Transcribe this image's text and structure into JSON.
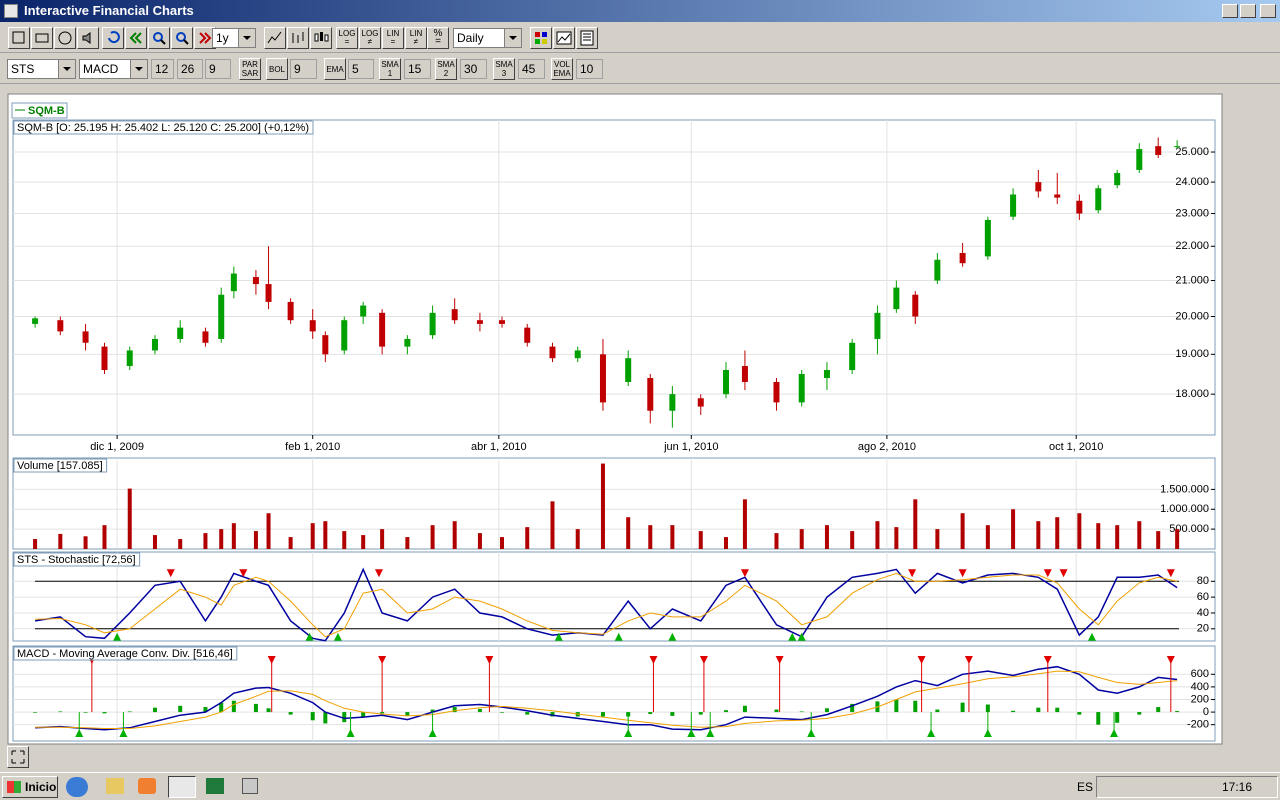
{
  "window": {
    "title": "Interactive Financial Charts"
  },
  "toolbar": {
    "period": "1y",
    "interval": "Daily",
    "scale_buttons": [
      "LOG",
      "LOG",
      "LIN",
      "LIN",
      "%"
    ]
  },
  "indicator_bar": {
    "symbol": "STS",
    "indicator": "MACD",
    "macd_params": [
      12,
      26,
      9
    ],
    "overlays": [
      {
        "label": "PAR SAR"
      },
      {
        "label": "BOL",
        "param": 9
      },
      {
        "label": "EMA",
        "param": 5
      },
      {
        "label": "SMA 1",
        "param": 15
      },
      {
        "label": "SMA 2",
        "param": 30
      },
      {
        "label": "SMA 3",
        "param": 45
      },
      {
        "label": "VOL EMA",
        "param": 10
      }
    ]
  },
  "chart_data": [
    {
      "type": "candlestick",
      "legend": "SQM-B",
      "title": "SQM-B [O: 25.195  H: 25.402  L: 25.120  C: 25.200] (+0,12%)",
      "x": [
        "2009-11-05",
        "2009-11-13",
        "2009-11-21",
        "2009-11-27",
        "2009-12-05",
        "2009-12-13",
        "2009-12-21",
        "2009-12-29",
        "2010-01-03",
        "2010-01-07",
        "2010-01-14",
        "2010-01-18",
        "2010-01-25",
        "2010-02-01",
        "2010-02-05",
        "2010-02-11",
        "2010-02-17",
        "2010-02-23",
        "2010-03-03",
        "2010-03-11",
        "2010-03-18",
        "2010-03-26",
        "2010-04-02",
        "2010-04-10",
        "2010-04-18",
        "2010-04-26",
        "2010-05-04",
        "2010-05-12",
        "2010-05-19",
        "2010-05-26",
        "2010-06-04",
        "2010-06-12",
        "2010-06-18",
        "2010-06-28",
        "2010-07-06",
        "2010-07-14",
        "2010-07-22",
        "2010-07-30",
        "2010-08-05",
        "2010-08-11",
        "2010-08-18",
        "2010-08-26",
        "2010-09-03",
        "2010-09-11",
        "2010-09-19",
        "2010-09-25",
        "2010-10-02",
        "2010-10-08",
        "2010-10-14",
        "2010-10-21",
        "2010-10-27",
        "2010-11-02"
      ],
      "open": [
        19.8,
        19.9,
        19.6,
        19.2,
        18.7,
        19.1,
        19.4,
        19.6,
        19.4,
        20.7,
        21.1,
        20.9,
        20.4,
        19.9,
        19.5,
        19.1,
        20.0,
        20.1,
        19.2,
        19.5,
        20.2,
        19.9,
        19.9,
        19.7,
        19.2,
        18.9,
        19.0,
        18.3,
        18.4,
        17.6,
        17.9,
        18.0,
        18.7,
        18.3,
        17.8,
        18.4,
        18.6,
        19.4,
        20.2,
        20.6,
        21.0,
        21.8,
        21.7,
        22.9,
        24.0,
        23.6,
        23.4,
        23.1,
        23.9,
        24.4,
        25.2,
        25.195
      ],
      "high": [
        20.0,
        20.0,
        19.8,
        19.3,
        19.2,
        19.5,
        19.9,
        19.7,
        20.8,
        21.4,
        21.3,
        22.0,
        20.5,
        20.2,
        19.6,
        20.0,
        20.4,
        20.2,
        19.5,
        20.3,
        20.5,
        20.1,
        20.0,
        19.8,
        19.3,
        19.2,
        19.4,
        19.1,
        18.5,
        18.2,
        18.0,
        18.8,
        19.1,
        18.4,
        18.6,
        18.8,
        19.4,
        20.3,
        21.0,
        20.7,
        21.8,
        22.1,
        22.9,
        23.8,
        24.4,
        24.3,
        23.6,
        23.9,
        24.4,
        25.3,
        25.5,
        25.402
      ],
      "low": [
        19.7,
        19.5,
        19.1,
        18.5,
        18.6,
        19.0,
        19.3,
        19.2,
        19.3,
        20.5,
        20.6,
        20.2,
        19.8,
        19.4,
        18.8,
        19.0,
        19.8,
        19.0,
        19.0,
        19.4,
        19.8,
        19.6,
        19.7,
        19.2,
        18.8,
        18.8,
        17.6,
        18.2,
        17.3,
        17.2,
        17.5,
        17.9,
        18.1,
        17.6,
        17.7,
        18.1,
        18.5,
        19.0,
        20.1,
        19.8,
        20.9,
        21.4,
        21.6,
        22.8,
        23.5,
        23.3,
        22.8,
        23.0,
        23.8,
        24.3,
        24.8,
        25.12
      ],
      "close": [
        19.95,
        19.6,
        19.3,
        18.6,
        19.1,
        19.4,
        19.7,
        19.3,
        20.6,
        21.2,
        20.9,
        20.4,
        19.9,
        19.6,
        19.0,
        19.9,
        20.3,
        19.2,
        19.4,
        20.1,
        19.9,
        19.8,
        19.8,
        19.3,
        18.9,
        19.1,
        17.8,
        18.9,
        17.6,
        18.0,
        17.7,
        18.6,
        18.3,
        17.8,
        18.5,
        18.6,
        19.3,
        20.1,
        20.8,
        20.0,
        21.6,
        21.5,
        22.8,
        23.6,
        23.7,
        23.5,
        23.0,
        23.8,
        24.3,
        25.1,
        24.9,
        25.2
      ],
      "up_color": "#00a000",
      "down_color": "#c00000",
      "legend_color": "#008000",
      "log_scale": true,
      "grid": true,
      "xlim": [
        "2009-10-29",
        "2010-11-14"
      ],
      "ylim": [
        17.03,
        26.11
      ],
      "xticks": [
        {
          "value": "2009-12-01",
          "label": "dic 1, 2009"
        },
        {
          "value": "2010-02-01",
          "label": "feb 1, 2010"
        },
        {
          "value": "2010-04-01",
          "label": "abr 1, 2010"
        },
        {
          "value": "2010-06-01",
          "label": "jun 1, 2010"
        },
        {
          "value": "2010-08-02",
          "label": "ago 2, 2010"
        },
        {
          "value": "2010-10-01",
          "label": "oct 1, 2010"
        }
      ],
      "yticks": [
        {
          "value": 18,
          "label": "18.000"
        },
        {
          "value": 19,
          "label": "19.000"
        },
        {
          "value": 20,
          "label": "20.000"
        },
        {
          "value": 21,
          "label": "21.000"
        },
        {
          "value": 22,
          "label": "22.000"
        },
        {
          "value": 23,
          "label": "23.000"
        },
        {
          "value": 24,
          "label": "24.000"
        },
        {
          "value": 25,
          "label": "25.000"
        }
      ]
    },
    {
      "type": "bar",
      "title": "Volume [157.085]",
      "color": "#b00000",
      "grid": true,
      "x": [
        "2009-11-05",
        "2009-11-13",
        "2009-11-21",
        "2009-11-27",
        "2009-12-05",
        "2009-12-13",
        "2009-12-21",
        "2009-12-29",
        "2010-01-03",
        "2010-01-07",
        "2010-01-14",
        "2010-01-18",
        "2010-01-25",
        "2010-02-01",
        "2010-02-05",
        "2010-02-11",
        "2010-02-17",
        "2010-02-23",
        "2010-03-03",
        "2010-03-11",
        "2010-03-18",
        "2010-03-26",
        "2010-04-02",
        "2010-04-10",
        "2010-04-18",
        "2010-04-26",
        "2010-05-04",
        "2010-05-12",
        "2010-05-19",
        "2010-05-26",
        "2010-06-04",
        "2010-06-12",
        "2010-06-18",
        "2010-06-28",
        "2010-07-06",
        "2010-07-14",
        "2010-07-22",
        "2010-07-30",
        "2010-08-05",
        "2010-08-11",
        "2010-08-18",
        "2010-08-26",
        "2010-09-03",
        "2010-09-11",
        "2010-09-19",
        "2010-09-25",
        "2010-10-02",
        "2010-10-08",
        "2010-10-14",
        "2010-10-21",
        "2010-10-27",
        "2010-11-02"
      ],
      "values": [
        250000,
        380000,
        320000,
        600000,
        1520000,
        350000,
        250000,
        400000,
        500000,
        650000,
        450000,
        900000,
        300000,
        650000,
        700000,
        450000,
        350000,
        500000,
        300000,
        600000,
        700000,
        400000,
        300000,
        550000,
        1200000,
        500000,
        2150000,
        800000,
        600000,
        600000,
        450000,
        300000,
        1250000,
        400000,
        500000,
        600000,
        450000,
        700000,
        550000,
        1250000,
        500000,
        900000,
        600000,
        1000000,
        700000,
        800000,
        900000,
        650000,
        600000,
        700000,
        450000,
        500000
      ],
      "ylim": [
        0,
        2290000
      ],
      "yticks": [
        {
          "value": 500000,
          "label": "500.000"
        },
        {
          "value": 1000000,
          "label": "1.000.000"
        },
        {
          "value": 1500000,
          "label": "1.500.000"
        }
      ]
    },
    {
      "type": "line",
      "title": "STS - Stochastic [72,56]",
      "grid": true,
      "x": [
        "2009-11-05",
        "2009-11-13",
        "2009-11-21",
        "2009-11-27",
        "2009-12-05",
        "2009-12-13",
        "2009-12-21",
        "2009-12-29",
        "2010-01-03",
        "2010-01-07",
        "2010-01-14",
        "2010-01-18",
        "2010-01-25",
        "2010-02-01",
        "2010-02-05",
        "2010-02-11",
        "2010-02-17",
        "2010-02-23",
        "2010-03-03",
        "2010-03-11",
        "2010-03-18",
        "2010-03-26",
        "2010-04-02",
        "2010-04-10",
        "2010-04-18",
        "2010-04-26",
        "2010-05-04",
        "2010-05-12",
        "2010-05-19",
        "2010-05-26",
        "2010-06-04",
        "2010-06-12",
        "2010-06-18",
        "2010-06-28",
        "2010-07-06",
        "2010-07-14",
        "2010-07-22",
        "2010-07-30",
        "2010-08-05",
        "2010-08-11",
        "2010-08-18",
        "2010-08-26",
        "2010-09-03",
        "2010-09-11",
        "2010-09-19",
        "2010-09-25",
        "2010-10-02",
        "2010-10-08",
        "2010-10-14",
        "2010-10-21",
        "2010-10-27",
        "2010-11-02"
      ],
      "series": [
        {
          "color": "#0000a0",
          "values": [
            30,
            35,
            10,
            8,
            40,
            75,
            80,
            30,
            60,
            90,
            80,
            75,
            30,
            8,
            5,
            40,
            95,
            40,
            30,
            60,
            70,
            40,
            35,
            20,
            12,
            15,
            12,
            55,
            20,
            45,
            30,
            75,
            85,
            25,
            10,
            60,
            85,
            90,
            95,
            65,
            90,
            78,
            88,
            90,
            85,
            70,
            12,
            35,
            85,
            85,
            88,
            72
          ]
        },
        {
          "color": "#f0a000",
          "values": [
            32,
            33,
            25,
            15,
            20,
            45,
            70,
            60,
            50,
            75,
            85,
            80,
            55,
            25,
            10,
            20,
            65,
            70,
            40,
            45,
            60,
            55,
            45,
            30,
            18,
            15,
            13,
            30,
            40,
            35,
            35,
            55,
            75,
            55,
            25,
            35,
            65,
            82,
            90,
            80,
            80,
            82,
            85,
            88,
            88,
            78,
            45,
            25,
            55,
            78,
            85,
            80
          ]
        }
      ],
      "hlines": [
        20,
        80
      ],
      "sell_signals": [
        "2009-12-18",
        "2010-01-10",
        "2010-02-22",
        "2010-06-18",
        "2010-08-10",
        "2010-08-26",
        "2010-09-22",
        "2010-09-27",
        "2010-10-31"
      ],
      "buy_signals": [
        "2009-12-01",
        "2010-01-31",
        "2010-02-09",
        "2010-04-20",
        "2010-05-09",
        "2010-05-26",
        "2010-07-03",
        "2010-07-06",
        "2010-10-06"
      ],
      "sell_color": "#e00000",
      "buy_color": "#00b000",
      "ylim": [
        4.6,
        117
      ],
      "yticks": [
        20,
        40,
        60,
        80
      ]
    },
    {
      "type": "line",
      "title": "MACD - Moving Average Conv. Div. [516,46]",
      "grid": true,
      "x": [
        "2009-11-05",
        "2009-11-13",
        "2009-11-21",
        "2009-11-27",
        "2009-12-05",
        "2009-12-13",
        "2009-12-21",
        "2009-12-29",
        "2010-01-03",
        "2010-01-07",
        "2010-01-14",
        "2010-01-18",
        "2010-01-25",
        "2010-02-01",
        "2010-02-05",
        "2010-02-11",
        "2010-02-17",
        "2010-02-23",
        "2010-03-03",
        "2010-03-11",
        "2010-03-18",
        "2010-03-26",
        "2010-04-02",
        "2010-04-10",
        "2010-04-18",
        "2010-04-26",
        "2010-05-04",
        "2010-05-12",
        "2010-05-19",
        "2010-05-26",
        "2010-06-04",
        "2010-06-12",
        "2010-06-18",
        "2010-06-28",
        "2010-07-06",
        "2010-07-14",
        "2010-07-22",
        "2010-07-30",
        "2010-08-05",
        "2010-08-11",
        "2010-08-18",
        "2010-08-26",
        "2010-09-03",
        "2010-09-11",
        "2010-09-19",
        "2010-09-25",
        "2010-10-02",
        "2010-10-08",
        "2010-10-14",
        "2010-10-21",
        "2010-10-27",
        "2010-11-02"
      ],
      "series": [
        {
          "color": "#0000a0",
          "values": [
            -250,
            -230,
            -260,
            -280,
            -250,
            -150,
            -50,
            0,
            150,
            300,
            380,
            390,
            300,
            150,
            0,
            -100,
            -80,
            -50,
            -120,
            0,
            100,
            120,
            80,
            20,
            -50,
            -100,
            -150,
            -200,
            -200,
            -270,
            -280,
            -200,
            -80,
            -100,
            -120,
            -40,
            100,
            250,
            400,
            500,
            420,
            600,
            650,
            580,
            680,
            720,
            600,
            350,
            300,
            400,
            550,
            516.46
          ]
        },
        {
          "color": "#f0a000",
          "values": [
            -240,
            -240,
            -250,
            -260,
            -260,
            -220,
            -150,
            -80,
            0,
            120,
            250,
            330,
            340,
            280,
            180,
            60,
            0,
            -30,
            -60,
            -40,
            20,
            70,
            90,
            60,
            20,
            -30,
            -80,
            -130,
            -170,
            -210,
            -240,
            -230,
            -180,
            -140,
            -130,
            -100,
            -30,
            80,
            200,
            320,
            380,
            450,
            530,
            560,
            610,
            650,
            640,
            550,
            470,
            440,
            470,
            500
          ]
        }
      ],
      "histogram": {
        "color": "#00a000",
        "values": [
          -10,
          10,
          -10,
          -20,
          10,
          70,
          100,
          80,
          150,
          180,
          130,
          60,
          -40,
          -130,
          -180,
          -160,
          -80,
          -20,
          -60,
          40,
          80,
          50,
          -10,
          -40,
          -70,
          -70,
          -70,
          -70,
          -30,
          -60,
          -40,
          30,
          100,
          40,
          10,
          60,
          130,
          170,
          200,
          180,
          40,
          150,
          120,
          20,
          70,
          70,
          -40,
          -200,
          -170,
          -40,
          80,
          16
        ]
      },
      "sell_signals": [
        "2009-11-23",
        "2010-01-19",
        "2010-02-23",
        "2010-03-29",
        "2010-05-20",
        "2010-06-05",
        "2010-06-29",
        "2010-08-13",
        "2010-08-28",
        "2010-09-22",
        "2010-10-31"
      ],
      "buy_signals": [
        "2009-11-19",
        "2009-12-03",
        "2010-02-13",
        "2010-03-11",
        "2010-05-12",
        "2010-06-01",
        "2010-06-07",
        "2010-07-09",
        "2010-08-16",
        "2010-09-03",
        "2010-10-13"
      ],
      "sell_color": "#e00000",
      "buy_color": "#00b000",
      "ylim": [
        -459,
        1049
      ],
      "yticks": [
        -200,
        0,
        200,
        400,
        600
      ]
    }
  ],
  "taskbar": {
    "start": "Inicio",
    "language": "ES",
    "clock": "17:16"
  }
}
